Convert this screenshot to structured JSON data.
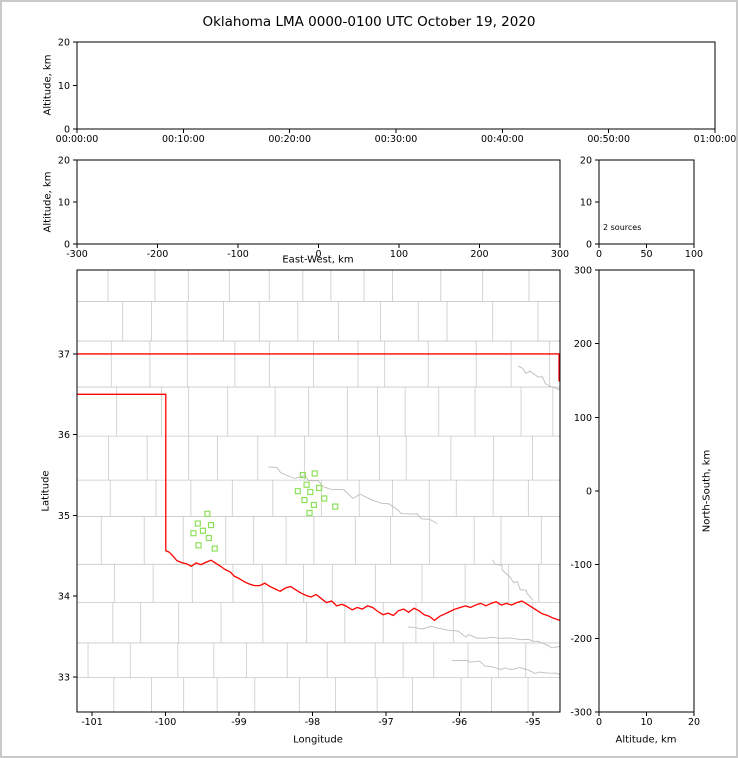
{
  "title": "Oklahoma LMA 0000-0100 UTC October 19, 2020",
  "colors": {
    "axis": "#000000",
    "county": "#c9c9c9",
    "river": "#bdbdbd",
    "state_border": "#ff0000",
    "source": "#8de05a",
    "frame": "#c9c9c9"
  },
  "chart_data": [
    {
      "id": "time_height",
      "type": "scatter",
      "xlabel": "",
      "ylabel": "Altitude, km",
      "xticks": [
        "00:00:00",
        "00:10:00",
        "00:20:00",
        "00:30:00",
        "00:40:00",
        "00:50:00",
        "01:00:00"
      ],
      "ylim": [
        0,
        20
      ],
      "yticks": [
        0,
        10,
        20
      ],
      "points": []
    },
    {
      "id": "ew_height",
      "type": "scatter",
      "xlabel": "East-West, km",
      "ylabel": "Altitude, km",
      "xlim": [
        -300,
        300
      ],
      "xticks": [
        -300,
        -200,
        -100,
        0,
        100,
        200,
        300
      ],
      "ylim": [
        0,
        20
      ],
      "yticks": [
        0,
        10,
        20
      ],
      "points": []
    },
    {
      "id": "alt_histogram",
      "type": "line",
      "xlim": [
        0,
        100
      ],
      "xticks": [
        0,
        50,
        100
      ],
      "ylim": [
        0,
        20
      ],
      "yticks": [
        0,
        10,
        20
      ],
      "annotation": "2 sources",
      "points": []
    },
    {
      "id": "plan_view_map",
      "type": "scatter",
      "xlabel": "Longitude",
      "ylabel": "Latitude",
      "xlim": [
        -101.204,
        -94.632
      ],
      "xticks": [
        -101,
        -100,
        -99,
        -98,
        -97,
        -96,
        -95
      ],
      "ylim": [
        32.565,
        38.04
      ],
      "yticks": [
        33,
        34,
        35,
        36,
        37
      ],
      "stations": [
        [
          -99.43,
          35.02
        ],
        [
          -99.56,
          34.9
        ],
        [
          -99.38,
          34.88
        ],
        [
          -99.49,
          34.81
        ],
        [
          -99.62,
          34.78
        ],
        [
          -99.41,
          34.72
        ],
        [
          -99.55,
          34.63
        ],
        [
          -99.33,
          34.59
        ],
        [
          -98.13,
          35.5
        ],
        [
          -97.97,
          35.52
        ],
        [
          -98.08,
          35.38
        ],
        [
          -98.2,
          35.3
        ],
        [
          -98.03,
          35.29
        ],
        [
          -97.91,
          35.34
        ],
        [
          -98.11,
          35.19
        ],
        [
          -97.98,
          35.13
        ],
        [
          -97.84,
          35.21
        ],
        [
          -97.69,
          35.11
        ],
        [
          -98.04,
          35.03
        ]
      ],
      "state_border": [
        [
          [
            -101.3,
            37.0
          ],
          [
            -94.6,
            37.0
          ]
        ],
        [
          [
            -94.645,
            37.0
          ],
          [
            -94.645,
            36.66
          ]
        ],
        [
          [
            -101.3,
            36.5
          ],
          [
            -99.996,
            36.5
          ],
          [
            -99.996,
            34.562
          ],
          [
            -99.95,
            34.545
          ],
          [
            -99.9,
            34.5
          ],
          [
            -99.845,
            34.44
          ],
          [
            -99.78,
            34.415
          ],
          [
            -99.71,
            34.4
          ],
          [
            -99.65,
            34.37
          ],
          [
            -99.585,
            34.41
          ],
          [
            -99.515,
            34.39
          ],
          [
            -99.45,
            34.42
          ],
          [
            -99.38,
            34.445
          ],
          [
            -99.32,
            34.41
          ],
          [
            -99.25,
            34.37
          ],
          [
            -99.19,
            34.33
          ],
          [
            -99.12,
            34.3
          ],
          [
            -99.06,
            34.245
          ],
          [
            -99.0,
            34.22
          ],
          [
            -98.93,
            34.18
          ],
          [
            -98.86,
            34.15
          ],
          [
            -98.79,
            34.13
          ],
          [
            -98.72,
            34.13
          ],
          [
            -98.65,
            34.16
          ],
          [
            -98.58,
            34.12
          ],
          [
            -98.51,
            34.09
          ],
          [
            -98.44,
            34.06
          ],
          [
            -98.37,
            34.1
          ],
          [
            -98.3,
            34.12
          ],
          [
            -98.23,
            34.08
          ],
          [
            -98.16,
            34.04
          ],
          [
            -98.09,
            34.01
          ],
          [
            -98.02,
            33.99
          ],
          [
            -97.95,
            34.02
          ],
          [
            -97.88,
            33.97
          ],
          [
            -97.81,
            33.92
          ],
          [
            -97.74,
            33.94
          ],
          [
            -97.67,
            33.88
          ],
          [
            -97.6,
            33.9
          ],
          [
            -97.53,
            33.87
          ],
          [
            -97.46,
            33.83
          ],
          [
            -97.39,
            33.86
          ],
          [
            -97.32,
            33.84
          ],
          [
            -97.25,
            33.88
          ],
          [
            -97.18,
            33.86
          ],
          [
            -97.11,
            33.81
          ],
          [
            -97.04,
            33.77
          ],
          [
            -96.97,
            33.79
          ],
          [
            -96.9,
            33.76
          ],
          [
            -96.83,
            33.82
          ],
          [
            -96.76,
            33.84
          ],
          [
            -96.69,
            33.8
          ],
          [
            -96.62,
            33.85
          ],
          [
            -96.55,
            33.82
          ],
          [
            -96.48,
            33.77
          ],
          [
            -96.41,
            33.75
          ],
          [
            -96.34,
            33.7
          ],
          [
            -96.27,
            33.75
          ],
          [
            -96.2,
            33.78
          ],
          [
            -96.13,
            33.81
          ],
          [
            -96.06,
            33.84
          ],
          [
            -95.99,
            33.86
          ],
          [
            -95.92,
            33.88
          ],
          [
            -95.85,
            33.86
          ],
          [
            -95.78,
            33.89
          ],
          [
            -95.71,
            33.91
          ],
          [
            -95.64,
            33.88
          ],
          [
            -95.57,
            33.91
          ],
          [
            -95.5,
            33.93
          ],
          [
            -95.43,
            33.89
          ],
          [
            -95.36,
            33.91
          ],
          [
            -95.29,
            33.89
          ],
          [
            -95.22,
            33.92
          ],
          [
            -95.15,
            33.94
          ],
          [
            -95.08,
            33.9
          ],
          [
            -95.01,
            33.86
          ],
          [
            -94.94,
            33.82
          ],
          [
            -94.87,
            33.78
          ],
          [
            -94.8,
            33.76
          ],
          [
            -94.73,
            33.73
          ],
          [
            -94.6,
            33.69
          ]
        ]
      ]
    },
    {
      "id": "ns_height",
      "type": "scatter",
      "xlabel": "Altitude, km",
      "ylabel_right": "North-South, km",
      "xlim": [
        0,
        20
      ],
      "xticks": [
        0,
        10,
        20
      ],
      "ylim": [
        -300,
        300
      ],
      "yticks": [
        300,
        200,
        100,
        0,
        -100,
        -200,
        -300
      ],
      "points": []
    }
  ]
}
